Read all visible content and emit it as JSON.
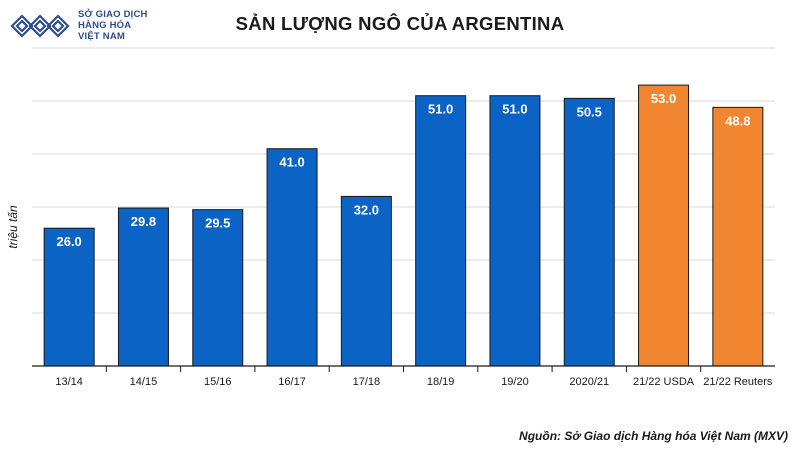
{
  "logo": {
    "name": "stock-exchange-logo-icon",
    "lines": [
      "SỞ GIAO DỊCH",
      "HÀNG HÓA",
      "VIỆT NAM"
    ]
  },
  "source": "Nguồn: Sở Giao dịch Hàng hóa Việt Nam (MXV)",
  "colors": {
    "actual": "#0b63c5",
    "forecast": "#f28530",
    "grid": "#d9d9d9",
    "label": "#ffffff"
  },
  "chart_data": {
    "type": "bar",
    "title": "SẢN LƯỢNG NGÔ CỦA ARGENTINA",
    "xlabel": "",
    "ylabel": "triệu tấn",
    "ylim": [
      0,
      60
    ],
    "grid": true,
    "categories": [
      "13/14",
      "14/15",
      "15/16",
      "16/17",
      "17/18",
      "18/19",
      "19/20",
      "2020/21",
      "21/22 USDA",
      "21/22 Reuters"
    ],
    "values": [
      26.0,
      29.8,
      29.5,
      41.0,
      32.0,
      51.0,
      51.0,
      50.5,
      53.0,
      48.8
    ],
    "value_labels": [
      "26.0",
      "29.8",
      "29.5",
      "41.0",
      "32.0",
      "51.0",
      "51.0",
      "50.5",
      "53.0",
      "48.8"
    ],
    "series_kind": [
      "actual",
      "actual",
      "actual",
      "actual",
      "actual",
      "actual",
      "actual",
      "actual",
      "forecast",
      "forecast"
    ]
  }
}
